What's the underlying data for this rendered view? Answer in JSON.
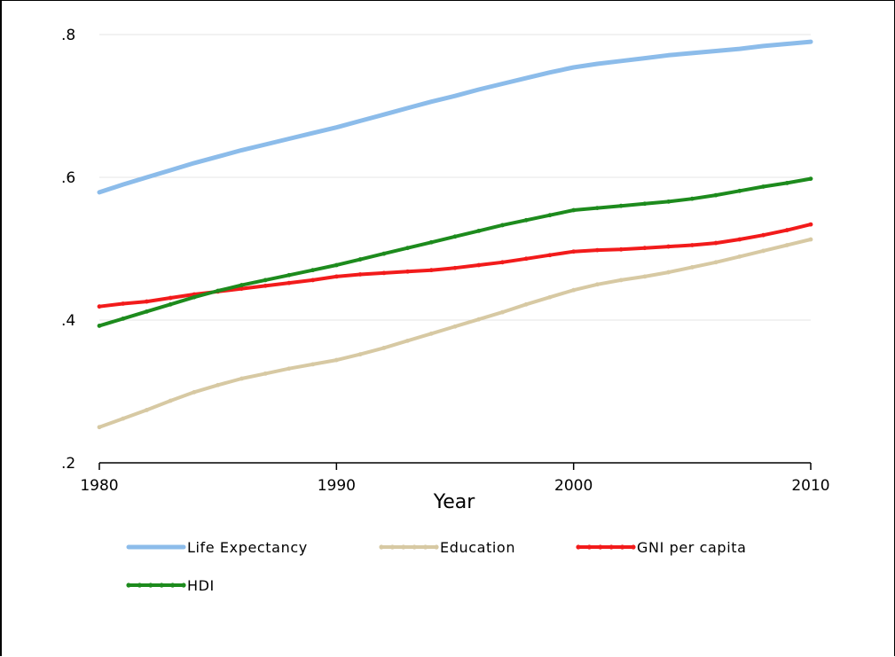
{
  "chart_data": {
    "type": "line",
    "title": "",
    "xlabel": "Year",
    "ylabel": "",
    "xlim": [
      1980,
      2010
    ],
    "ylim": [
      0.2,
      0.8
    ],
    "x_ticks": [
      1980,
      1990,
      2000,
      2010
    ],
    "x_tick_labels": [
      "1980",
      "1990",
      "2000",
      "2010"
    ],
    "y_ticks": [
      0.2,
      0.4,
      0.6,
      0.8
    ],
    "y_tick_labels": [
      ".2",
      ".4",
      ".6",
      ".8"
    ],
    "grid": "horizontal",
    "legend_position": "bottom",
    "x": [
      1980,
      1981,
      1982,
      1983,
      1984,
      1985,
      1986,
      1987,
      1988,
      1989,
      1990,
      1991,
      1992,
      1993,
      1994,
      1995,
      1996,
      1997,
      1998,
      1999,
      2000,
      2001,
      2002,
      2003,
      2004,
      2005,
      2006,
      2007,
      2008,
      2009,
      2010
    ],
    "series": [
      {
        "name": "Life Expectancy",
        "color": "#8cbcea",
        "marker": "none",
        "values": [
          0.579,
          0.59,
          0.6,
          0.61,
          0.62,
          0.629,
          0.638,
          0.646,
          0.654,
          0.662,
          0.67,
          0.679,
          0.688,
          0.697,
          0.706,
          0.714,
          0.723,
          0.731,
          0.739,
          0.747,
          0.754,
          0.759,
          0.763,
          0.767,
          0.771,
          0.774,
          0.777,
          0.78,
          0.784,
          0.787,
          0.79
        ]
      },
      {
        "name": "Education",
        "color": "#d7c9a3",
        "marker": "dot",
        "values": [
          0.25,
          0.262,
          0.274,
          0.287,
          0.299,
          0.309,
          0.318,
          0.325,
          0.332,
          0.338,
          0.344,
          0.352,
          0.361,
          0.371,
          0.381,
          0.391,
          0.401,
          0.411,
          0.422,
          0.432,
          0.442,
          0.45,
          0.456,
          0.461,
          0.467,
          0.474,
          0.481,
          0.489,
          0.497,
          0.505,
          0.513
        ]
      },
      {
        "name": "GNI per capita",
        "color": "#f21b1b",
        "marker": "dot",
        "values": [
          0.419,
          0.423,
          0.426,
          0.431,
          0.436,
          0.44,
          0.444,
          0.448,
          0.452,
          0.456,
          0.461,
          0.464,
          0.466,
          0.468,
          0.47,
          0.473,
          0.477,
          0.481,
          0.486,
          0.491,
          0.496,
          0.498,
          0.499,
          0.501,
          0.503,
          0.505,
          0.508,
          0.513,
          0.519,
          0.526,
          0.534
        ]
      },
      {
        "name": "HDI",
        "color": "#1d8b1d",
        "marker": "dot",
        "values": [
          0.392,
          0.402,
          0.412,
          0.422,
          0.432,
          0.441,
          0.449,
          0.456,
          0.463,
          0.47,
          0.477,
          0.485,
          0.493,
          0.501,
          0.509,
          0.517,
          0.525,
          0.533,
          0.54,
          0.547,
          0.554,
          0.557,
          0.56,
          0.563,
          0.566,
          0.57,
          0.575,
          0.581,
          0.587,
          0.592,
          0.598
        ]
      }
    ]
  }
}
